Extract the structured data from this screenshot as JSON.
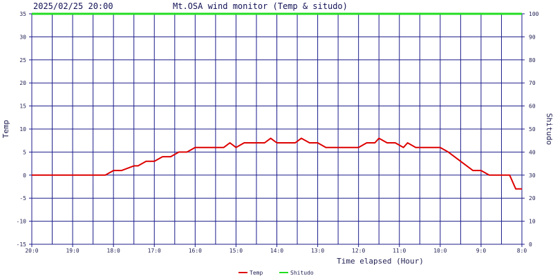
{
  "header": {
    "timestamp": "2025/02/25 20:00",
    "title": "Mt.OSA wind monitor (Temp & situdo)"
  },
  "colors": {
    "temp": "#dd0000",
    "shitudo": "#22dd22",
    "grid": "#1a1a8a",
    "background": "#ffffff"
  },
  "chart_data": {
    "type": "line",
    "title": "Mt.OSA wind monitor (Temp & situdo)",
    "xlabel": "Time elapsed (Hour)",
    "ylabel_left": "Temp",
    "ylabel_right": "Shitudo",
    "xlim": [
      20,
      8
    ],
    "ylim_left": [
      -15,
      35
    ],
    "ylim_right": [
      0,
      100
    ],
    "x_ticks": [
      20,
      19,
      18,
      17,
      16,
      15,
      14,
      13,
      12,
      11,
      10,
      9,
      8
    ],
    "x_tick_labels": [
      "20:0",
      "19:0",
      "18:0",
      "17:0",
      "16:0",
      "15:0",
      "14:0",
      "13:0",
      "12:0",
      "11:0",
      "10:0",
      "9:0",
      "8:0"
    ],
    "y_left_ticks": [
      35,
      30,
      25,
      20,
      15,
      10,
      5,
      0,
      -5,
      -10,
      -15
    ],
    "y_right_ticks": [
      100,
      90,
      80,
      70,
      60,
      50,
      40,
      30,
      20,
      10,
      0
    ],
    "grid": true,
    "legend": "bottom-center",
    "series": [
      {
        "name": "Temp",
        "axis": "left",
        "x": [
          20,
          19.5,
          19,
          18.8,
          18.4,
          18.2,
          18.0,
          17.8,
          17.5,
          17.4,
          17.2,
          17.0,
          16.8,
          16.6,
          16.4,
          16.2,
          16.0,
          15.8,
          15.5,
          15.3,
          15.15,
          15.0,
          14.8,
          14.55,
          14.3,
          14.15,
          14.0,
          13.8,
          13.55,
          13.4,
          13.2,
          13.0,
          12.8,
          12.5,
          12.2,
          12.0,
          11.8,
          11.6,
          11.5,
          11.3,
          11.1,
          10.9,
          10.8,
          10.6,
          10.4,
          10.0,
          9.8,
          9.5,
          9.2,
          9.0,
          8.8,
          8.6,
          8.5,
          8.3,
          8.15,
          8.0
        ],
        "values": [
          0,
          0,
          0,
          0,
          0,
          0,
          1,
          1,
          2,
          2,
          3,
          3,
          4,
          4,
          5,
          5,
          6,
          6,
          6,
          6,
          7,
          6,
          7,
          7,
          7,
          8,
          7,
          7,
          7,
          8,
          7,
          7,
          6,
          6,
          6,
          6,
          7,
          7,
          8,
          7,
          7,
          6,
          7,
          6,
          6,
          6,
          5,
          3,
          1,
          1,
          0,
          0,
          0,
          0,
          -3,
          -3
        ]
      },
      {
        "name": "Shitudo",
        "axis": "right",
        "x": [
          20,
          8
        ],
        "values": [
          100,
          100
        ]
      }
    ]
  }
}
